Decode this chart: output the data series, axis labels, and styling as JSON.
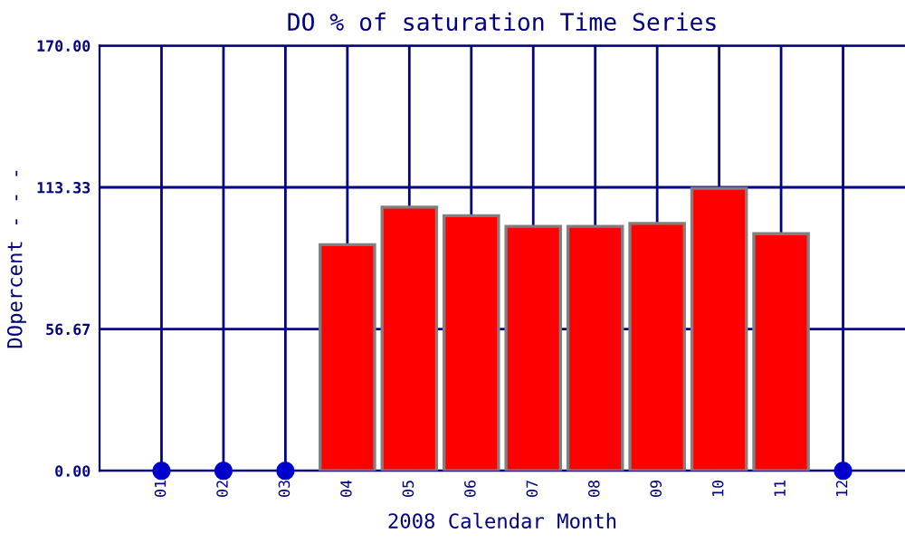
{
  "chart_data": {
    "type": "bar",
    "title": "DO % of saturation Time Series",
    "xlabel": "2008 Calendar Month",
    "ylabel": "DOpercent - - -",
    "categories": [
      "01",
      "02",
      "03",
      "04",
      "05",
      "06",
      "07",
      "08",
      "09",
      "10",
      "11",
      "12"
    ],
    "series": [
      {
        "color": "#ff0000",
        "values": [
          null,
          null,
          null,
          90.4,
          105.4,
          102.0,
          97.7,
          97.7,
          98.9,
          112.9,
          94.8,
          null
        ]
      },
      {
        "type": "scatter",
        "color": "#0000cc",
        "x": [
          "01",
          "02",
          "03",
          "12"
        ],
        "values": [
          0,
          0,
          0,
          0
        ],
        "marker": "circle"
      }
    ],
    "ylim": [
      0,
      170
    ],
    "yticks": [
      {
        "value": 0,
        "label": "0.00"
      },
      {
        "value": 56.67,
        "label": "56.67"
      },
      {
        "value": 113.33,
        "label": "113.33"
      },
      {
        "value": 170,
        "label": "170.00"
      }
    ],
    "grid": true
  }
}
